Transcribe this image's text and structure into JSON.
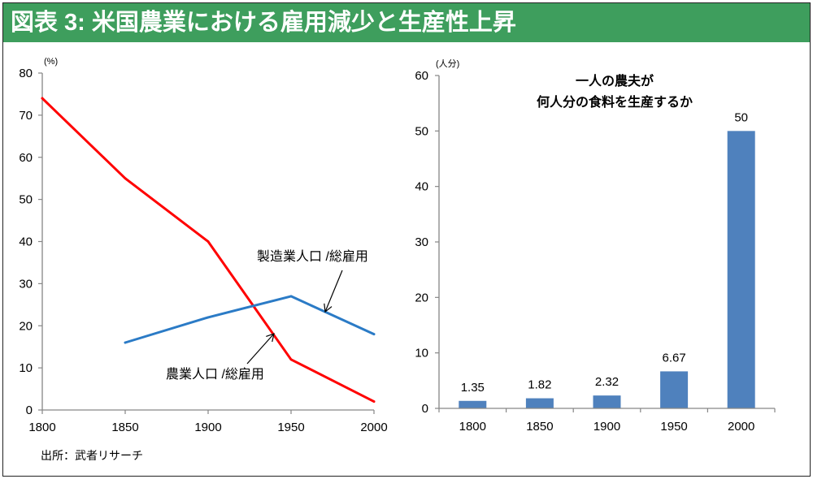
{
  "header": {
    "title": "図表 3: 米国農業における雇用減少と生産性上昇"
  },
  "footer": {
    "source": "出所：武者リサーチ"
  },
  "colors": {
    "header_bg": "#3e9e5d",
    "header_text": "#ffffff",
    "axis": "#868686",
    "bar": "#4f81bd"
  },
  "chart_data": [
    {
      "type": "line",
      "ylabel": "(%)",
      "x_ticks": [
        1800,
        1850,
        1900,
        1950,
        2000
      ],
      "xlim": [
        1800,
        2000
      ],
      "y_ticks": [
        0,
        10,
        20,
        30,
        40,
        50,
        60,
        70,
        80
      ],
      "ylim": [
        0,
        80
      ],
      "grid": false,
      "legend": "none",
      "series": [
        {
          "name": "農業人口 /総雇用",
          "color": "#ff0000",
          "x": [
            1800,
            1850,
            1900,
            1950,
            2000
          ],
          "values": [
            74,
            55,
            40,
            12,
            2
          ]
        },
        {
          "name": "製造業人口 /総雇用",
          "color": "#2b7bc6",
          "x": [
            1850,
            1900,
            1950,
            2000
          ],
          "values": [
            16,
            22,
            27,
            18
          ]
        }
      ]
    },
    {
      "type": "bar",
      "title_lines": [
        "一人の農夫が",
        "何人分の食料を生産するか"
      ],
      "ylabel": "(人分)",
      "categories": [
        "1800",
        "1850",
        "1900",
        "1950",
        "2000"
      ],
      "values": [
        1.35,
        1.82,
        2.32,
        6.67,
        50
      ],
      "y_ticks": [
        0,
        10,
        20,
        30,
        40,
        50,
        60
      ],
      "ylim": [
        0,
        60
      ],
      "grid": false,
      "legend": "none"
    }
  ]
}
